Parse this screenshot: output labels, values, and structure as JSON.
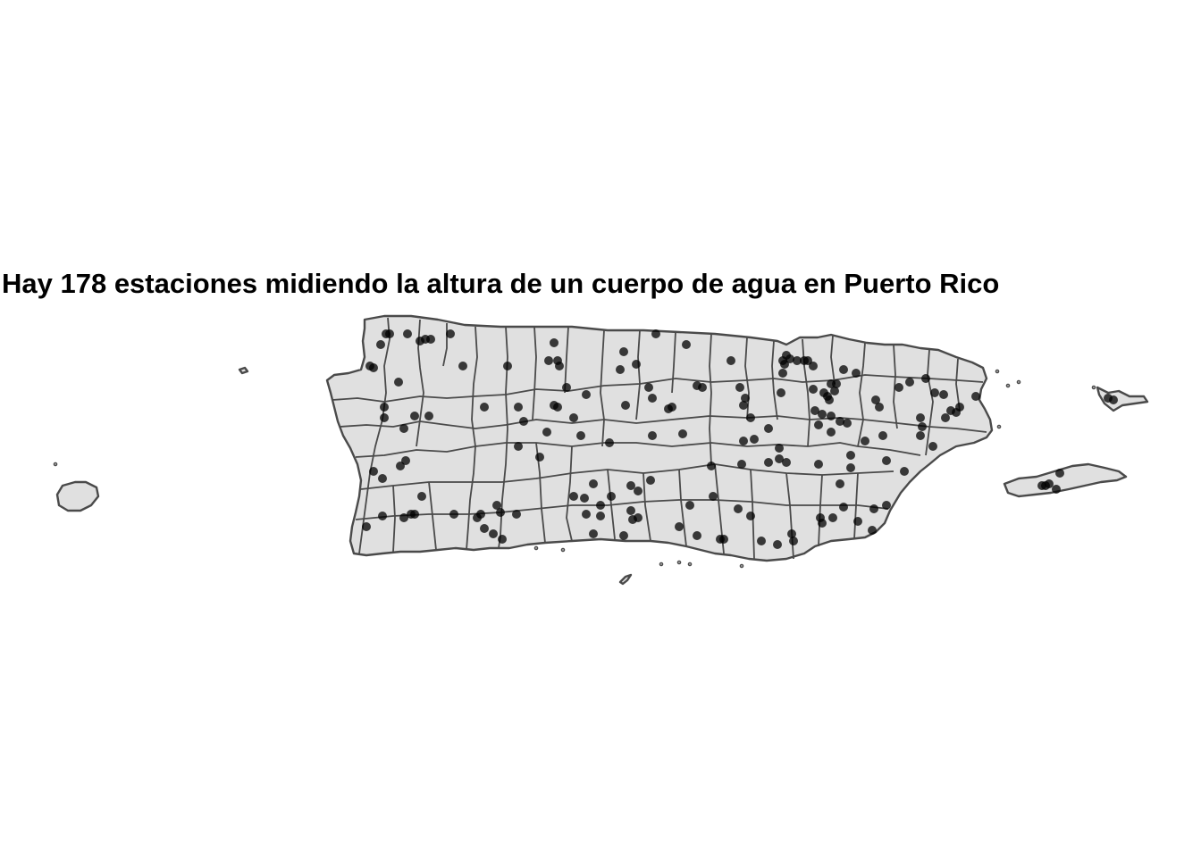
{
  "title": "Hay 178 estaciones midiendo la altura de un cuerpo de agua en Puerto Rico",
  "map": {
    "region": "Puerto Rico",
    "station_count": 178,
    "colors": {
      "land": "#e0e0e0",
      "border": "#4a4a4a",
      "station": "#000000"
    },
    "station_opacity": 0.75
  }
}
